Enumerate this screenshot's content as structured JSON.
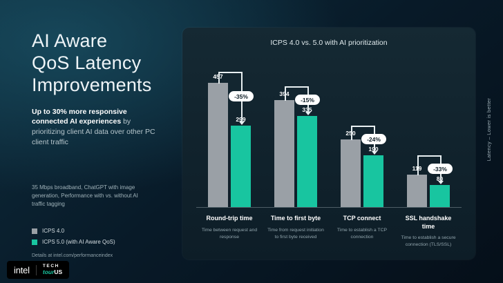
{
  "left": {
    "title_lines": [
      "AI Aware",
      "QoS Latency",
      "Improvements"
    ],
    "subtitle_bold": "Up to 30% more responsive connected AI experiences",
    "subtitle_rest": "by prioritizing client AI data over other PC client traffic",
    "footnote": "35 Mbps broadband, ChatGPT with image generation, Performance with vs. without AI traffic tagging",
    "details": "Details at intel.com/performanceindex"
  },
  "legend": {
    "items": [
      {
        "label": "ICPS 4.0",
        "color": "#9aa0a6"
      },
      {
        "label": "ICPS 5.0 (with AI Aware QoS)",
        "color": "#18c5a0"
      }
    ]
  },
  "footer_logo": {
    "intel": "intel",
    "tech": "TECH",
    "tour": "tour",
    "us": "US"
  },
  "colors": {
    "bar_gray": "#9aa0a6",
    "bar_teal": "#18c5a0",
    "pill_bg": "#ffffff",
    "pill_text": "#0b1b24"
  },
  "chart_data": {
    "type": "bar",
    "title": "ICPS 4.0 vs. 5.0 with AI prioritization",
    "right_axis_label": "Latency – Lower is better",
    "categories": [
      "Round-trip time",
      "Time to first byte",
      "TCP connect",
      "SSL handshake time"
    ],
    "category_descriptions": [
      "Time between request and response",
      "Time from request initiation to first byte received",
      "Time to establish a TCP connection",
      "Time to establish a secure connection (TLS/SSL)"
    ],
    "series": [
      {
        "name": "ICPS 4.0",
        "color": "#9aa0a6",
        "values": [
          457,
          394,
          250,
          119
        ]
      },
      {
        "name": "ICPS 5.0 (with AI Aware QoS)",
        "color": "#18c5a0",
        "values": [
          299,
          335,
          190,
          80
        ]
      }
    ],
    "deltas": [
      "-35%",
      "-15%",
      "-24%",
      "-33%"
    ],
    "ylim": [
      0,
      500
    ],
    "legend_position": "left",
    "grid": false
  }
}
